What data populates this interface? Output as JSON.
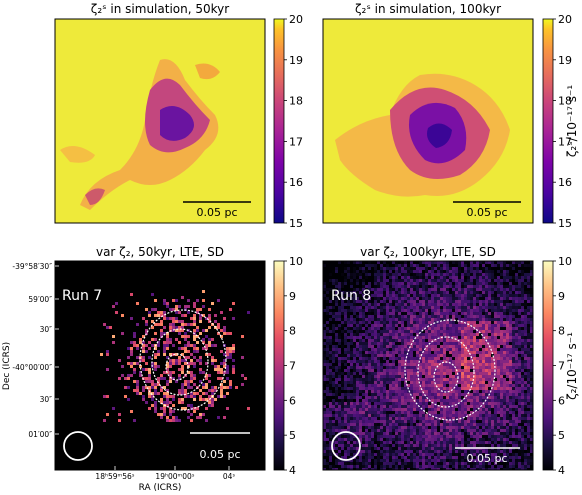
{
  "chart_data": [
    {
      "type": "heatmap",
      "title": "ζ₂ˢ in simulation, 50kyr",
      "colormap": "plasma",
      "scalebar": "0.05 pc",
      "clim": [
        15,
        20
      ],
      "colorbar": {
        "ticks": [
          "15",
          "16",
          "17",
          "18",
          "19",
          "20"
        ],
        "label": ""
      },
      "z_min_structure": 16.0,
      "z_background": 20.0
    },
    {
      "type": "heatmap",
      "title": "ζ₂ˢ in simulation, 100kyr",
      "colormap": "plasma",
      "scalebar": "0.05 pc",
      "clim": [
        15,
        20
      ],
      "colorbar": {
        "ticks": [
          "15",
          "16",
          "17",
          "18",
          "19",
          "20"
        ],
        "label": "ζ₂ˢ/10⁻¹⁷ s⁻¹"
      },
      "z_min_structure": 16.0,
      "z_background": 20.0
    },
    {
      "type": "heatmap",
      "title": "var ζ₂, 50kyr, LTE, SD",
      "run_label": "Run 7",
      "colormap": "magma",
      "scalebar": "0.05 pc",
      "clim": [
        4,
        10
      ],
      "colorbar": {
        "ticks": [
          "4",
          "5",
          "6",
          "7",
          "8",
          "9",
          "10"
        ],
        "label": ""
      },
      "ylabel": "Dec (ICRS)",
      "xlabel": "RA (ICRS)",
      "yticks": [
        "-39°58′30″",
        "59′00″",
        "30″",
        "-40°00′00″",
        "30″",
        "01′00″"
      ],
      "xticks": [
        "18ʰ59ᵐ56ˢ",
        "19ʰ00ᵐ00ˢ",
        "04ˢ"
      ]
    },
    {
      "type": "heatmap",
      "title": "var ζ₂, 100kyr, LTE, SD",
      "run_label": "Run 8",
      "colormap": "magma",
      "scalebar": "0.05 pc",
      "clim": [
        4,
        10
      ],
      "colorbar": {
        "ticks": [
          "4",
          "5",
          "6",
          "7",
          "8",
          "9",
          "10"
        ],
        "label": "ζ₂/10⁻¹⁷ s⁻¹"
      }
    }
  ]
}
